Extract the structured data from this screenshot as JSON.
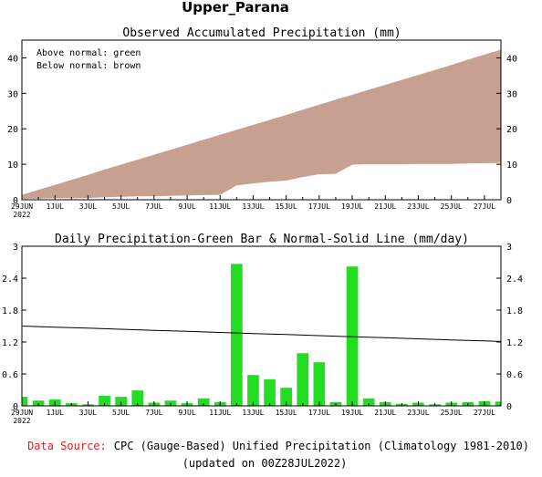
{
  "page_title": "Upper_Parana",
  "colors": {
    "above_normal": "#00cc00",
    "below_normal": "#c8a092",
    "daily_bar": "#22dd22",
    "source_label": "#e02020",
    "normal_line": "#000000"
  },
  "footer": {
    "source_label": "Data Source:",
    "source_text": "CPC (Gauge-Based) Unified Precipitation (Climatology 1981-2010)",
    "updated": "(updated on 00Z28JUL2022)"
  },
  "chart_data": [
    {
      "type": "area",
      "title": "Observed Accumulated Precipitation (mm)",
      "legend": [
        "Above normal: green",
        "Below normal: brown"
      ],
      "legend_placement": "top-left",
      "ylim": [
        0,
        45
      ],
      "yticks": [
        0,
        10,
        20,
        30,
        40
      ],
      "xticks": [
        "29JUN",
        "1JUL",
        "3JUL",
        "5JUL",
        "7JUL",
        "9JUL",
        "11JUL",
        "13JUL",
        "15JUL",
        "17JUL",
        "19JUL",
        "21JUL",
        "23JUL",
        "25JUL",
        "27JUL"
      ],
      "xtick_year": "2022",
      "x": [
        "29JUN",
        "30JUN",
        "1JUL",
        "2JUL",
        "3JUL",
        "4JUL",
        "5JUL",
        "6JUL",
        "7JUL",
        "8JUL",
        "9JUL",
        "10JUL",
        "11JUL",
        "12JUL",
        "13JUL",
        "14JUL",
        "15JUL",
        "16JUL",
        "17JUL",
        "18JUL",
        "19JUL",
        "20JUL",
        "21JUL",
        "22JUL",
        "23JUL",
        "24JUL",
        "25JUL",
        "26JUL",
        "27JUL",
        "28JUL"
      ],
      "series": [
        {
          "name": "Observed",
          "values": [
            0.2,
            0.3,
            0.4,
            0.45,
            0.5,
            0.7,
            0.85,
            0.95,
            1.0,
            1.1,
            1.2,
            1.3,
            1.4,
            4.0,
            4.6,
            5.1,
            5.4,
            6.4,
            7.2,
            7.3,
            9.9,
            10.0,
            10.0,
            10.0,
            10.1,
            10.1,
            10.1,
            10.2,
            10.3,
            10.4
          ]
        },
        {
          "name": "Normal",
          "values": [
            1.4,
            2.8,
            4.2,
            5.6,
            7.0,
            8.5,
            9.9,
            11.3,
            12.7,
            14.1,
            15.5,
            16.9,
            18.3,
            19.7,
            21.1,
            22.5,
            23.9,
            25.4,
            26.8,
            28.2,
            29.6,
            31.0,
            32.4,
            33.8,
            35.2,
            36.6,
            38.0,
            39.5,
            40.9,
            42.3
          ]
        }
      ]
    },
    {
      "type": "bar",
      "title": "Daily Precipitation-Green Bar & Normal-Solid Line (mm/day)",
      "ylim": [
        0,
        3
      ],
      "yticks": [
        "0",
        "0.6",
        "1.2",
        "1.8",
        "2.4",
        "3"
      ],
      "xticks": [
        "29JUN",
        "1JUL",
        "3JUL",
        "5JUL",
        "7JUL",
        "9JUL",
        "11JUL",
        "13JUL",
        "15JUL",
        "17JUL",
        "19JUL",
        "21JUL",
        "23JUL",
        "25JUL",
        "27JUL"
      ],
      "xtick_year": "2022",
      "categories": [
        "29JUN",
        "30JUN",
        "1JUL",
        "2JUL",
        "3JUL",
        "4JUL",
        "5JUL",
        "6JUL",
        "7JUL",
        "8JUL",
        "9JUL",
        "10JUL",
        "11JUL",
        "12JUL",
        "13JUL",
        "14JUL",
        "15JUL",
        "16JUL",
        "17JUL",
        "18JUL",
        "19JUL",
        "20JUL",
        "21JUL",
        "22JUL",
        "23JUL",
        "24JUL",
        "25JUL",
        "26JUL",
        "27JUL",
        "28JUL"
      ],
      "values": [
        0.17,
        0.1,
        0.12,
        0.05,
        0.03,
        0.19,
        0.17,
        0.29,
        0.06,
        0.1,
        0.05,
        0.14,
        0.07,
        2.67,
        0.58,
        0.5,
        0.34,
        0.99,
        0.82,
        0.07,
        2.62,
        0.14,
        0.07,
        0.04,
        0.06,
        0.03,
        0.06,
        0.07,
        0.09,
        0.08
      ],
      "normal_line": [
        1.5,
        1.49,
        1.48,
        1.47,
        1.46,
        1.45,
        1.44,
        1.43,
        1.42,
        1.41,
        1.4,
        1.39,
        1.38,
        1.37,
        1.36,
        1.35,
        1.34,
        1.33,
        1.32,
        1.31,
        1.3,
        1.29,
        1.28,
        1.27,
        1.26,
        1.25,
        1.24,
        1.23,
        1.22,
        1.21
      ]
    }
  ]
}
